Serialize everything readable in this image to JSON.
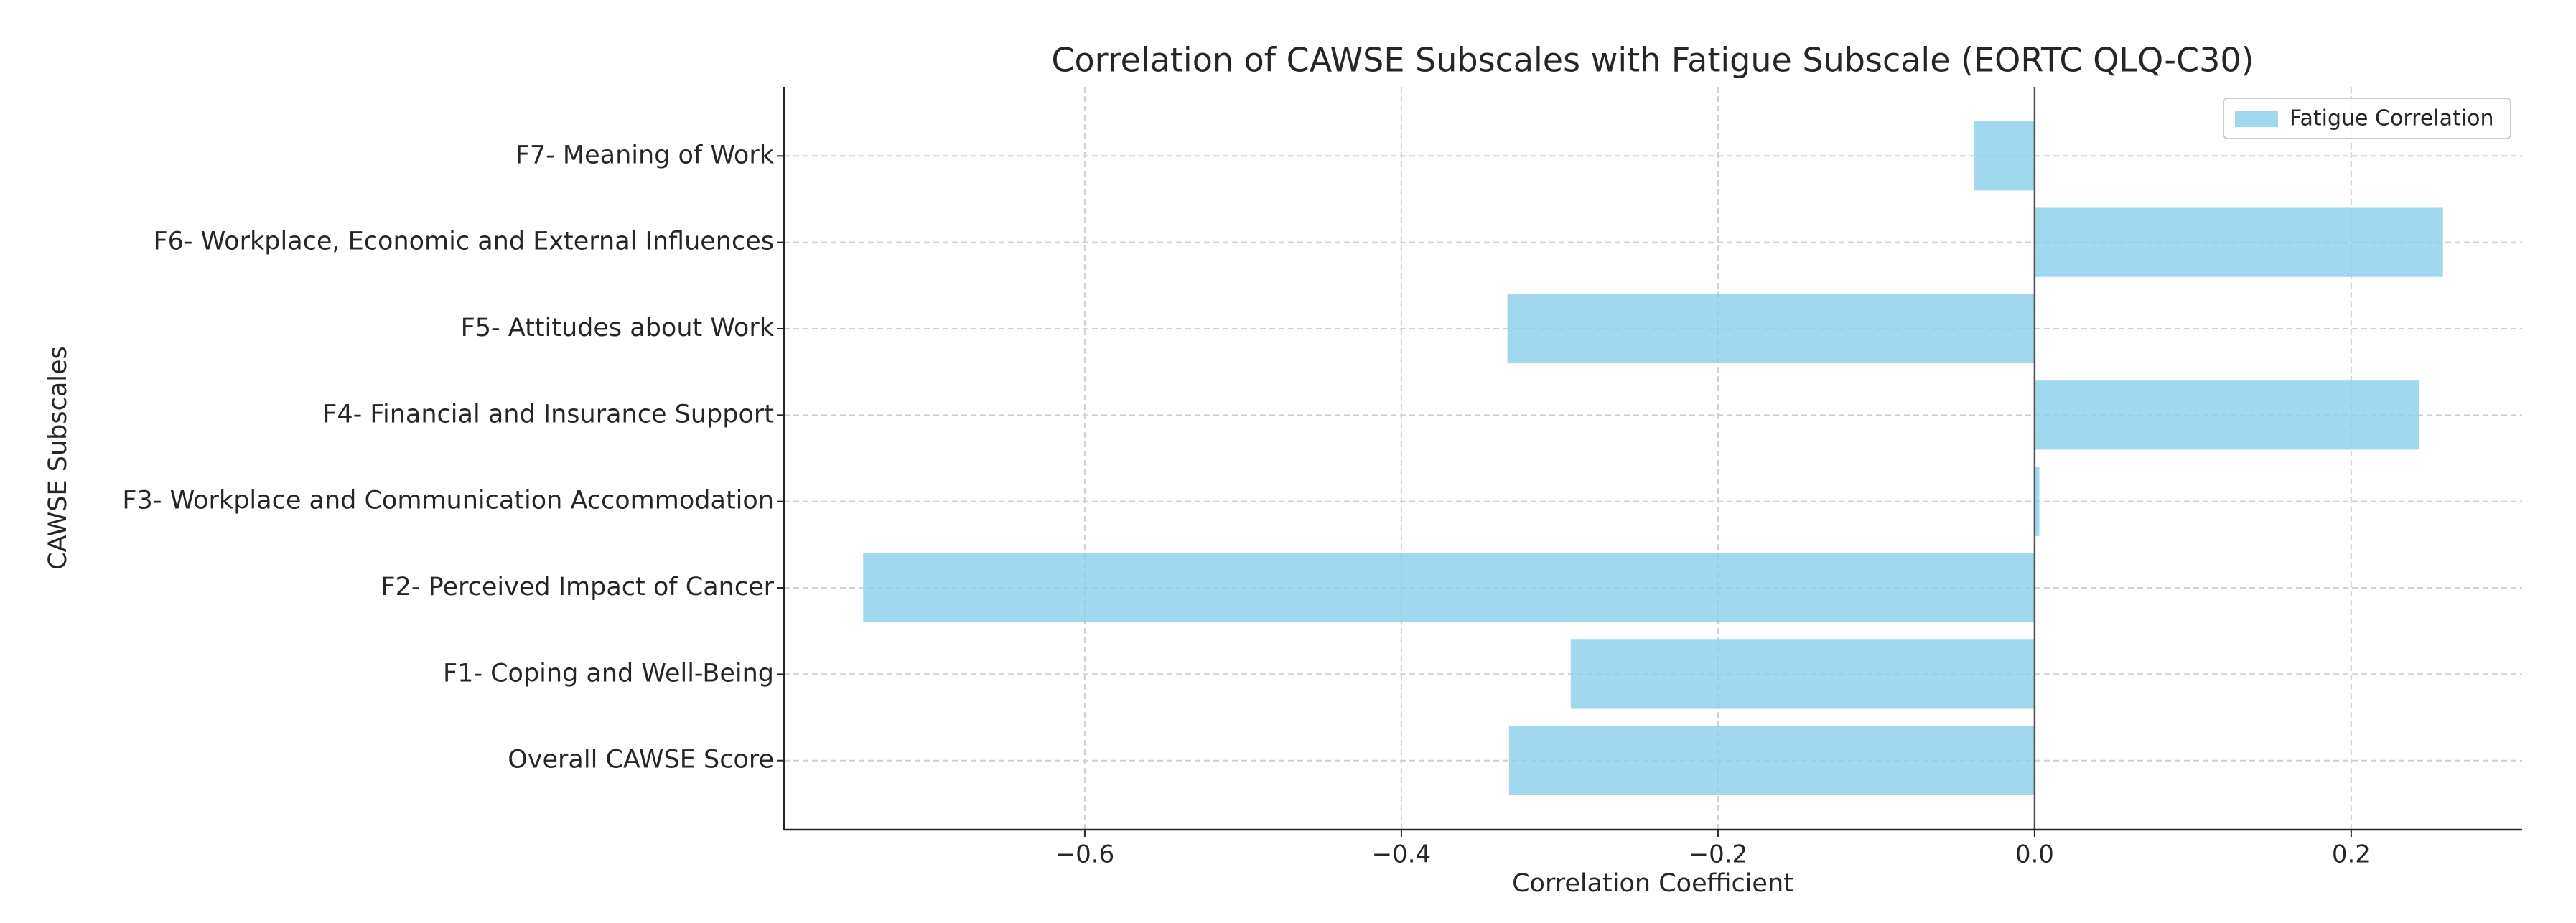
{
  "chart_data": {
    "type": "barh",
    "title": "Correlation of CAWSE Subscales with Fatigue Subscale (EORTC QLQ-C30)",
    "xlabel": "Correlation Coefficient",
    "ylabel": "CAWSE Subscales",
    "categories": [
      "Overall CAWSE Score",
      "F1- Coping and Well-Being",
      "F2- Perceived Impact of Cancer",
      "F3- Workplace and Communication Accommodation",
      "F4- Financial and Insurance Support",
      "F5- Attitudes about Work",
      "F6- Workplace, Economic and External Influences",
      "F7- Meaning of Work"
    ],
    "series": [
      {
        "name": "Fatigue Correlation",
        "color": "#87ceeb",
        "values": [
          -0.332,
          -0.293,
          -0.74,
          0.003,
          0.243,
          -0.333,
          0.258,
          -0.038
        ]
      }
    ],
    "xlim": [
      -0.79,
      0.308
    ],
    "xticks": [
      {
        "value": -0.6,
        "label": "−0.6"
      },
      {
        "value": -0.4,
        "label": "−0.4"
      },
      {
        "value": -0.2,
        "label": "−0.2"
      },
      {
        "value": 0,
        "label": "0.0"
      },
      0.2
    ],
    "grid": true,
    "legend": "upper right"
  }
}
